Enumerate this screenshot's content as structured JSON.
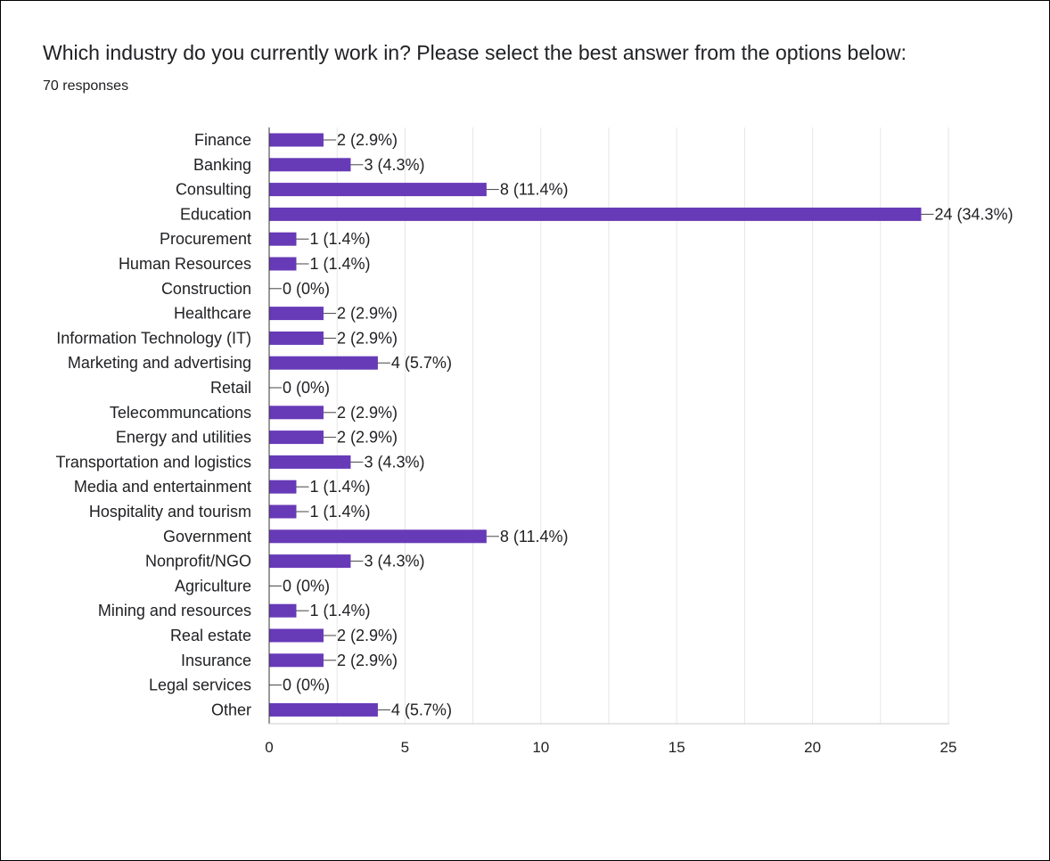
{
  "question": {
    "title": "Which industry do you currently work in? Please select the best answer from the options below:",
    "response_count": "70 responses"
  },
  "colors": {
    "bar": "#673ab7",
    "grid": "#e6e6e6",
    "axis": "#333333",
    "connector": "#444444",
    "text": "#202124"
  },
  "chart_data": {
    "type": "bar",
    "orientation": "horizontal",
    "title": "",
    "xlabel": "",
    "ylabel": "",
    "xlim": [
      0,
      25
    ],
    "xticks": [
      0,
      5,
      10,
      15,
      20,
      25
    ],
    "grid": true,
    "categories": [
      "Finance",
      "Banking",
      "Consulting",
      "Education",
      "Procurement",
      "Human Resources",
      "Construction",
      "Healthcare",
      "Information Technology (IT)",
      "Marketing and advertising",
      "Retail",
      "Telecommuncations",
      "Energy and utilities",
      "Transportation and logistics",
      "Media and entertainment",
      "Hospitality and tourism",
      "Government",
      "Nonprofit/NGO",
      "Agriculture",
      "Mining and resources",
      "Real estate",
      "Insurance",
      "Legal services",
      "Other"
    ],
    "values": [
      2,
      3,
      8,
      24,
      1,
      1,
      0,
      2,
      2,
      4,
      0,
      2,
      2,
      3,
      1,
      1,
      8,
      3,
      0,
      1,
      2,
      2,
      0,
      4
    ],
    "data_labels": [
      "2 (2.9%)",
      "3 (4.3%)",
      "8 (11.4%)",
      "24 (34.3%)",
      "1 (1.4%)",
      "1 (1.4%)",
      "0 (0%)",
      "2 (2.9%)",
      "2 (2.9%)",
      "4 (5.7%)",
      "0 (0%)",
      "2 (2.9%)",
      "2 (2.9%)",
      "3 (4.3%)",
      "1 (1.4%)",
      "1 (1.4%)",
      "8 (11.4%)",
      "3 (4.3%)",
      "0 (0%)",
      "1 (1.4%)",
      "2 (2.9%)",
      "2 (2.9%)",
      "0 (0%)",
      "4 (5.7%)"
    ]
  }
}
